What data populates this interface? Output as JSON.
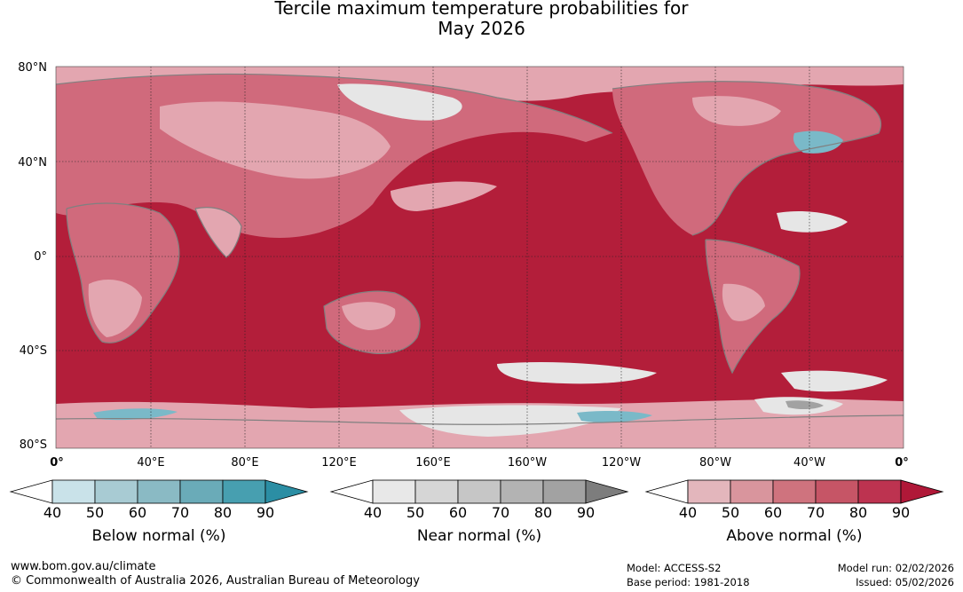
{
  "title": {
    "line1": "Tercile maximum temperature probabilities for",
    "line2": "May 2026"
  },
  "map": {
    "lat_labels": [
      "80°N",
      "40°N",
      "0°",
      "40°S",
      "80°S"
    ],
    "lon_labels": [
      "0°",
      "40°E",
      "80°E",
      "120°E",
      "160°E",
      "160°W",
      "120°W",
      "80°W",
      "40°W",
      "0°"
    ],
    "colors": {
      "ocean_deep": "#b31e3a",
      "land_mid": "#d06a7c",
      "land_light": "#e3a6b0",
      "near_white": "#e6e6e6",
      "blue": "#7ab9c8",
      "coast": "#808080"
    }
  },
  "colorbars": [
    {
      "name": "below-normal",
      "title": "Below normal (%)",
      "ticks": [
        "40",
        "50",
        "60",
        "70",
        "80",
        "90"
      ],
      "colors": [
        "#c9e2e9",
        "#a8cbd3",
        "#8abac4",
        "#6aabb8",
        "#479fb0",
        "#2b8ea4"
      ]
    },
    {
      "name": "near-normal",
      "title": "Near normal (%)",
      "ticks": [
        "40",
        "50",
        "60",
        "70",
        "80",
        "90"
      ],
      "colors": [
        "#e8e8e8",
        "#d6d6d6",
        "#c6c6c6",
        "#b3b3b3",
        "#a2a2a2",
        "#7d7d7d"
      ]
    },
    {
      "name": "above-normal",
      "title": "Above normal (%)",
      "ticks": [
        "40",
        "50",
        "60",
        "70",
        "80",
        "90"
      ],
      "colors": [
        "#e3b6bc",
        "#d9959d",
        "#cf737e",
        "#c65566",
        "#bd3350",
        "#b01838"
      ]
    }
  ],
  "footer": {
    "url": "www.bom.gov.au/climate",
    "copyright": "© Commonwealth of Australia 2026, Australian Bureau of Meteorology",
    "model": "Model: ACCESS-S2",
    "base_period": "Base period: 1981-2018",
    "model_run": "Model run: 02/02/2026",
    "issued": "Issued: 05/02/2026"
  }
}
